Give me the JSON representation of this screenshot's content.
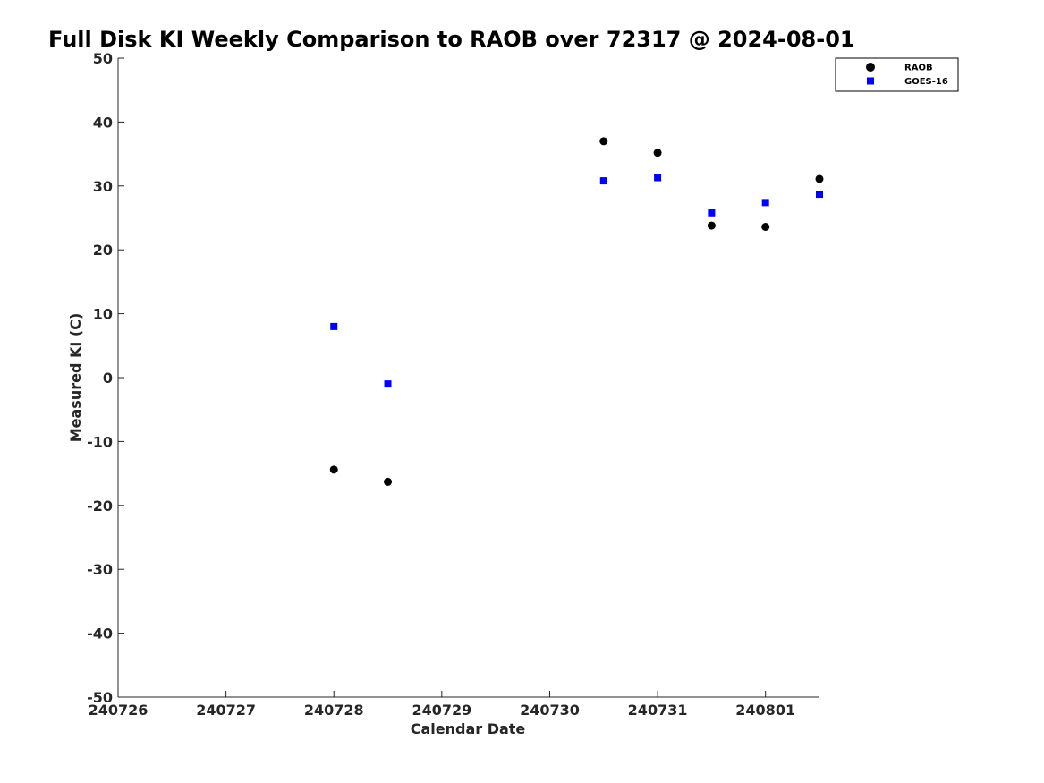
{
  "chart_data": {
    "type": "scatter",
    "title": "Full Disk KI Weekly Comparison to RAOB over 72317 @ 2024-08-01",
    "xlabel": "Calendar Date",
    "ylabel": "Measured KI (C)",
    "x_tick_labels": [
      "240726",
      "240727",
      "240728",
      "240729",
      "240730",
      "240731",
      "240801"
    ],
    "y_tick_labels": [
      "50",
      "40",
      "30",
      "20",
      "10",
      "0",
      "-10",
      "-20",
      "-30",
      "-40",
      "-50"
    ],
    "xlim": [
      "2024-07-26 00:00",
      "2024-08-01 12:00"
    ],
    "ylim": [
      -50,
      50
    ],
    "grid": false,
    "legend_position": "top-right",
    "series": [
      {
        "name": "RAOB",
        "marker": "circle",
        "color": "#000000",
        "points": [
          {
            "x": "2024-07-28 00:00",
            "y": -14.4
          },
          {
            "x": "2024-07-28 12:00",
            "y": -16.3
          },
          {
            "x": "2024-07-30 12:00",
            "y": 37.0
          },
          {
            "x": "2024-07-31 00:00",
            "y": 35.2
          },
          {
            "x": "2024-07-31 12:00",
            "y": 23.8
          },
          {
            "x": "2024-08-01 00:00",
            "y": 23.6
          },
          {
            "x": "2024-08-01 12:00",
            "y": 31.1
          }
        ]
      },
      {
        "name": "GOES-16",
        "marker": "square",
        "color": "#0000ff",
        "points": [
          {
            "x": "2024-07-28 00:00",
            "y": 8.0
          },
          {
            "x": "2024-07-28 12:00",
            "y": -1.0
          },
          {
            "x": "2024-07-30 12:00",
            "y": 30.8
          },
          {
            "x": "2024-07-31 00:00",
            "y": 31.3
          },
          {
            "x": "2024-07-31 12:00",
            "y": 25.8
          },
          {
            "x": "2024-08-01 00:00",
            "y": 27.4
          },
          {
            "x": "2024-08-01 12:00",
            "y": 28.7
          }
        ]
      }
    ]
  }
}
